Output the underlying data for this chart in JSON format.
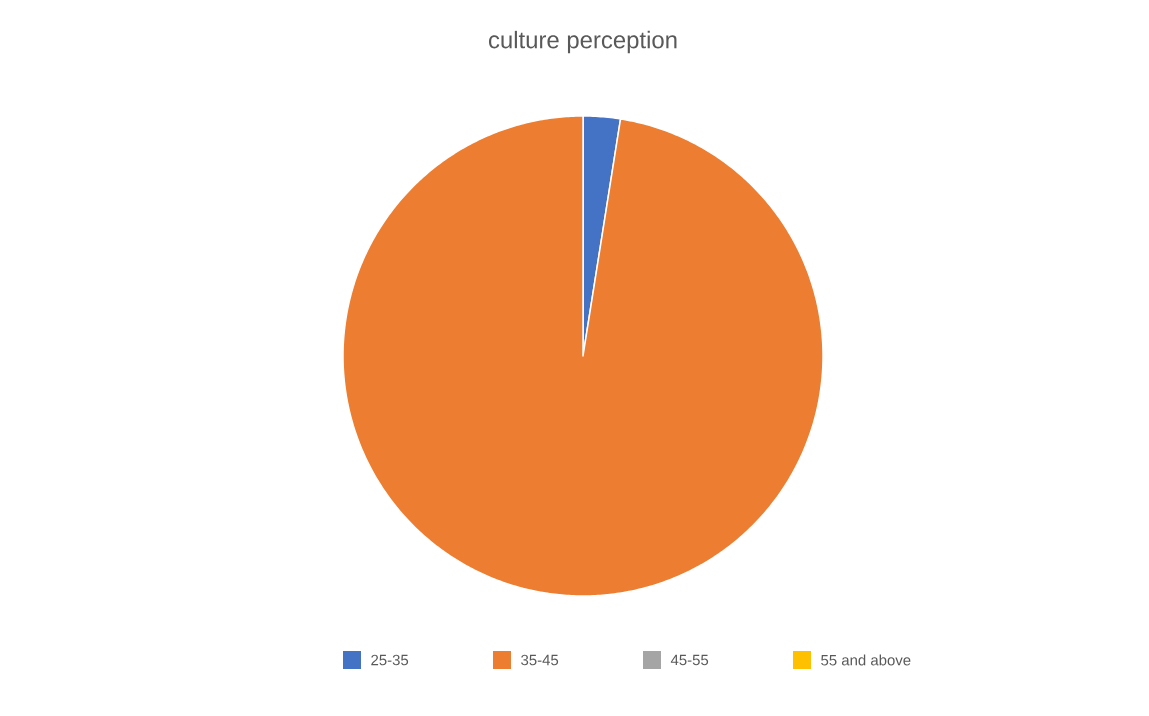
{
  "chart_data": {
    "type": "pie",
    "title": "culture perception",
    "categories": [
      "25-35",
      "35-45",
      "45-55",
      "55 and above"
    ],
    "values": [
      2.5,
      97.5,
      0,
      0
    ],
    "colors": [
      "#4472c4",
      "#ed7d31",
      "#a5a5a5",
      "#ffc000"
    ],
    "legend": "bottom"
  }
}
